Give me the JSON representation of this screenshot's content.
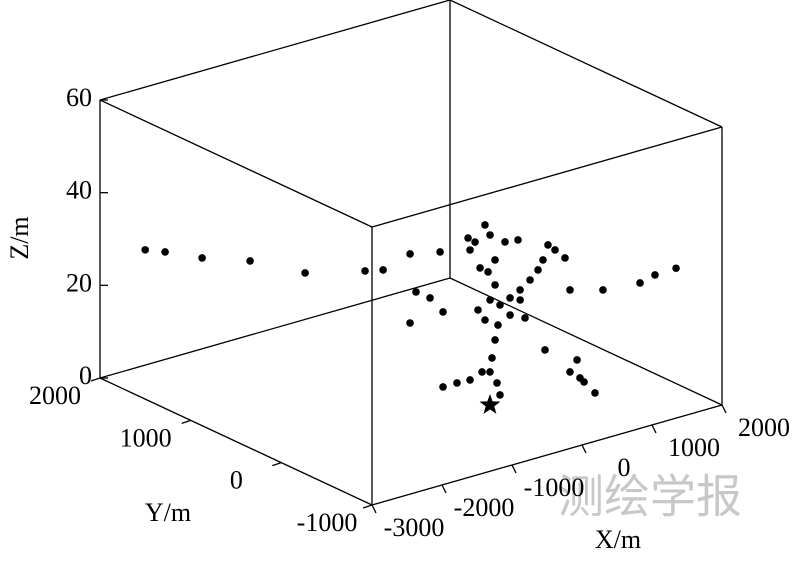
{
  "chart_data": {
    "type": "scatter3d",
    "xlabel": "X/m",
    "ylabel": "Y/m",
    "zlabel": "Z/m",
    "xlim": [
      -3000,
      2000
    ],
    "ylim": [
      -1000,
      2000
    ],
    "zlim": [
      0,
      60
    ],
    "xticks": [
      -3000,
      -2000,
      -1000,
      0,
      1000,
      2000
    ],
    "yticks": [
      -1000,
      0,
      1000,
      2000
    ],
    "zticks": [
      0,
      20,
      40,
      60
    ],
    "color": "#000000",
    "points": {
      "x": [
        -2366,
        -2228,
        -2014,
        -1646,
        -1386,
        -817,
        -638,
        -95,
        208,
        930,
        1391,
        1676,
        1990,
        638,
        -1009,
        -809,
        -637,
        -379,
        -967,
        -764,
        -754,
        -641,
        597,
        691,
        401,
        335,
        223,
        375,
        857,
        824,
        761,
        528,
        558,
        561,
        460,
        -159,
        -173,
        238,
        93,
        93,
        246,
        -369,
        -182,
        -187,
        103,
        179,
        172,
        394,
        445,
        -246,
        -226,
        71,
        147,
        508,
        -118,
        345,
        -24,
        -308,
        -455,
        -656
      ],
      "y": [
        1991,
        1878,
        1635,
        1390,
        984,
        762,
        701,
        823,
        726,
        -513,
        -566,
        -511,
        -501,
        -375,
        -246,
        -246,
        -257,
        -190,
        150,
        241,
        94,
        38,
        -131,
        -412,
        -558,
        -764,
        -971,
        -688,
        37,
        -66,
        -225,
        -162,
        -84,
        6,
        38,
        134,
        46,
        254,
        86,
        -79,
        -104,
        -50,
        -16,
        -108,
        39,
        152,
        37,
        98,
        26,
        -120,
        -248,
        -152,
        -258,
        351,
        56,
        225,
        -26,
        -223,
        -414,
        -602
      ],
      "z": [
        25,
        25,
        25,
        25,
        25,
        25,
        25,
        25,
        25,
        25,
        25,
        25,
        25,
        25,
        10,
        10,
        10,
        10,
        20,
        25,
        25,
        22,
        10,
        10,
        10,
        10,
        10,
        10,
        30,
        30,
        30,
        30,
        27,
        24,
        22,
        35,
        35,
        35,
        35,
        35,
        35,
        35,
        30,
        30,
        30,
        20,
        20,
        20,
        20,
        20,
        20,
        20,
        20,
        20,
        20,
        10,
        10,
        10,
        10,
        10
      ]
    },
    "star": {
      "x": -496,
      "y": -368,
      "z": 5
    },
    "watermark": "测绘学报"
  }
}
